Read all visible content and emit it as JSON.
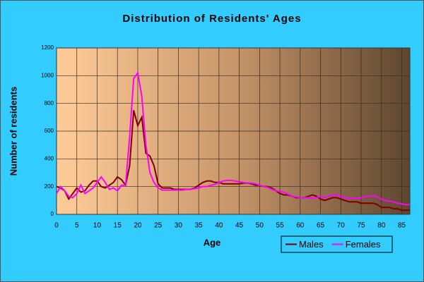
{
  "chart_data": {
    "type": "line",
    "title": "Distribution of Residents' Ages",
    "x_label": "Age",
    "y_label": "Number of residents",
    "x": [
      0,
      1,
      2,
      3,
      4,
      5,
      6,
      7,
      8,
      9,
      10,
      11,
      12,
      13,
      14,
      15,
      16,
      17,
      18,
      19,
      20,
      21,
      22,
      23,
      24,
      25,
      26,
      27,
      28,
      29,
      30,
      31,
      32,
      33,
      34,
      35,
      36,
      37,
      38,
      39,
      40,
      41,
      42,
      43,
      44,
      45,
      46,
      47,
      48,
      49,
      50,
      51,
      52,
      53,
      54,
      55,
      56,
      57,
      58,
      59,
      60,
      61,
      62,
      63,
      64,
      65,
      66,
      67,
      68,
      69,
      70,
      71,
      72,
      73,
      74,
      75,
      76,
      77,
      78,
      79,
      80,
      81,
      82,
      83,
      84,
      85,
      86,
      87
    ],
    "series": [
      {
        "name": "Males",
        "color": "#800000",
        "values": [
          200,
          190,
          170,
          110,
          150,
          190,
          160,
          170,
          210,
          240,
          240,
          200,
          190,
          210,
          230,
          270,
          250,
          210,
          350,
          750,
          640,
          700,
          440,
          420,
          350,
          220,
          190,
          190,
          190,
          180,
          180,
          180,
          180,
          180,
          190,
          210,
          230,
          240,
          240,
          230,
          230,
          220,
          220,
          220,
          220,
          220,
          225,
          225,
          220,
          210,
          210,
          200,
          200,
          190,
          170,
          150,
          140,
          140,
          130,
          120,
          120,
          120,
          130,
          140,
          130,
          110,
          100,
          110,
          120,
          120,
          110,
          100,
          90,
          90,
          90,
          80,
          80,
          80,
          80,
          70,
          50,
          50,
          50,
          40,
          40,
          30,
          30,
          30
        ]
      },
      {
        "name": "Females",
        "color": "#ff00ff",
        "values": [
          150,
          200,
          170,
          130,
          120,
          150,
          210,
          150,
          170,
          190,
          230,
          270,
          230,
          180,
          190,
          170,
          210,
          210,
          560,
          980,
          1020,
          850,
          500,
          300,
          230,
          190,
          175,
          175,
          175,
          175,
          175,
          175,
          180,
          180,
          185,
          190,
          200,
          200,
          210,
          215,
          230,
          240,
          245,
          245,
          240,
          235,
          230,
          225,
          225,
          220,
          210,
          200,
          195,
          180,
          170,
          165,
          160,
          145,
          130,
          125,
          120,
          120,
          120,
          115,
          120,
          130,
          120,
          130,
          140,
          140,
          130,
          120,
          115,
          115,
          115,
          120,
          125,
          130,
          135,
          125,
          110,
          100,
          95,
          90,
          80,
          75,
          70,
          70
        ]
      }
    ],
    "xlim": [
      0,
      87
    ],
    "xticks": [
      0,
      5,
      10,
      15,
      20,
      25,
      30,
      35,
      40,
      45,
      50,
      55,
      60,
      65,
      70,
      75,
      80,
      85
    ],
    "ylim": [
      0,
      1200
    ],
    "yticks": [
      0,
      200,
      400,
      600,
      800,
      1000,
      1200
    ],
    "grid": true,
    "legend": "lower right"
  }
}
